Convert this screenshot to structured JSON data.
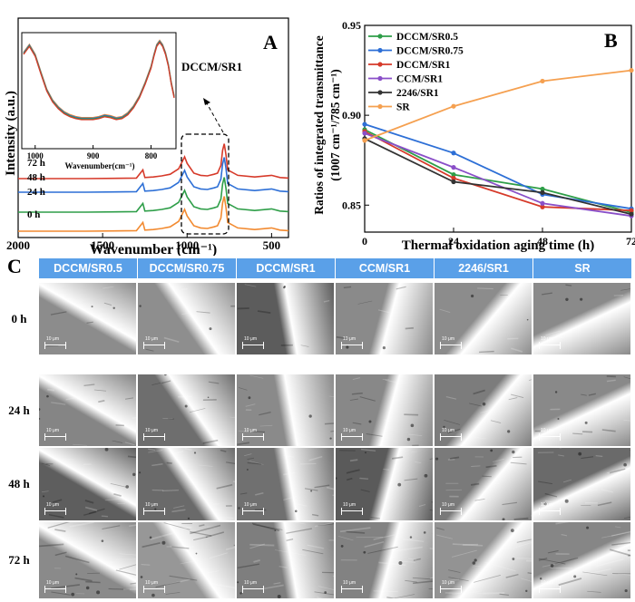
{
  "chart_data": [
    {
      "panel": "A",
      "type": "line",
      "title": "DCCM/SR1",
      "xlabel": "Wavenumber (cm⁻¹)",
      "ylabel": "Intensity (a.u.)",
      "xlim": [
        2000,
        400
      ],
      "xticks": [
        "2000",
        "1500",
        "1000",
        "500"
      ],
      "series": [
        {
          "name": "0 h",
          "color": "#f28a30",
          "x": [
            2000,
            1600,
            1300,
            1262,
            1250,
            1200,
            1150,
            1100,
            1050,
            1015,
            1000,
            960,
            920,
            880,
            840,
            820,
            800,
            790,
            780,
            770,
            760,
            700,
            600,
            500,
            450,
            400
          ],
          "y": [
            0,
            0,
            0.5,
            8,
            1,
            1.5,
            2.5,
            4,
            9,
            20,
            14,
            5,
            3,
            2.5,
            4,
            5,
            12,
            26,
            32,
            22,
            8,
            3,
            1.5,
            3,
            1,
            0.5
          ]
        },
        {
          "name": "24 h",
          "color": "#2e9e48",
          "x": [
            2000,
            1600,
            1300,
            1262,
            1250,
            1200,
            1150,
            1100,
            1050,
            1015,
            1000,
            960,
            920,
            880,
            840,
            820,
            800,
            790,
            780,
            770,
            760,
            700,
            600,
            500,
            450,
            400
          ],
          "y": [
            0,
            0,
            0.5,
            8,
            1,
            1.5,
            2.5,
            4,
            9,
            20,
            14,
            5,
            3,
            2.5,
            4,
            5,
            12,
            26,
            32,
            22,
            8,
            3,
            1.5,
            3,
            1,
            0.5
          ]
        },
        {
          "name": "48 h",
          "color": "#2d6fd6",
          "x": [
            2000,
            1600,
            1300,
            1262,
            1250,
            1200,
            1150,
            1100,
            1050,
            1015,
            1000,
            960,
            920,
            880,
            840,
            820,
            800,
            790,
            780,
            770,
            760,
            700,
            600,
            500,
            450,
            400
          ],
          "y": [
            0,
            0,
            0.5,
            8,
            1,
            1.5,
            2.5,
            4,
            9,
            20,
            14,
            5,
            3,
            2.5,
            4,
            5,
            12,
            26,
            32,
            22,
            8,
            3,
            1.5,
            3,
            1,
            0.5
          ]
        },
        {
          "name": "72 h",
          "color": "#d63a2a",
          "x": [
            2000,
            1600,
            1300,
            1262,
            1250,
            1200,
            1150,
            1100,
            1050,
            1015,
            1000,
            960,
            920,
            880,
            840,
            820,
            800,
            790,
            780,
            770,
            760,
            700,
            600,
            500,
            450,
            400
          ],
          "y": [
            0,
            0,
            0.5,
            8,
            1,
            1.5,
            2.5,
            4,
            9,
            20,
            14,
            5,
            3,
            2.5,
            4,
            5,
            12,
            26,
            32,
            22,
            8,
            3,
            1.5,
            3,
            1,
            0.5
          ]
        }
      ],
      "inset": {
        "xlabel": "Wavenumber(cm⁻¹)",
        "xlim": [
          1020,
          760
        ],
        "xticks": [
          "1000",
          "900",
          "800"
        ],
        "x": [
          1020,
          1010,
          1000,
          990,
          980,
          970,
          960,
          950,
          940,
          930,
          920,
          910,
          900,
          890,
          880,
          870,
          860,
          850,
          840,
          830,
          820,
          810,
          800,
          795,
          790,
          785,
          780,
          775,
          770,
          765,
          760
        ],
        "y": [
          92,
          100,
          90,
          72,
          55,
          44,
          37,
          32,
          29,
          27,
          26,
          26,
          26,
          27,
          29,
          28,
          26,
          27,
          31,
          38,
          48,
          62,
          78,
          90,
          100,
          104,
          100,
          92,
          80,
          62,
          48
        ]
      }
    },
    {
      "panel": "B",
      "type": "line",
      "xlabel": "Thermal oxidation aging time (h)",
      "ylabel": "Ratios of integrated transmittance",
      "ylabel2": "(1007 cm⁻¹/785 cm⁻¹)",
      "x": [
        0,
        24,
        48,
        72
      ],
      "xlim": [
        0,
        72
      ],
      "ylim": [
        0.835,
        0.95
      ],
      "xticks": [
        "0",
        "24",
        "48",
        "72"
      ],
      "yticks": [
        "0.85",
        "0.90",
        "0.95"
      ],
      "legend": "top-left",
      "series": [
        {
          "name": "DCCM/SR0.5",
          "color": "#2e9e48",
          "values": [
            0.892,
            0.867,
            0.859,
            0.846
          ]
        },
        {
          "name": "DCCM/SR0.75",
          "color": "#2d6fd6",
          "values": [
            0.895,
            0.879,
            0.856,
            0.848
          ]
        },
        {
          "name": "DCCM/SR1",
          "color": "#d63a2a",
          "values": [
            0.891,
            0.865,
            0.849,
            0.847
          ]
        },
        {
          "name": "CCM/SR1",
          "color": "#8a4fc8",
          "values": [
            0.89,
            0.871,
            0.851,
            0.844
          ]
        },
        {
          "name": "2246/SR1",
          "color": "#333333",
          "values": [
            0.887,
            0.863,
            0.857,
            0.845
          ]
        },
        {
          "name": "SR",
          "color": "#f5a050",
          "values": [
            0.886,
            0.905,
            0.919,
            0.925
          ]
        }
      ]
    }
  ],
  "panelA": {
    "label": "A",
    "annotation": "DCCM/SR1",
    "series_labels": [
      "72 h",
      "48 h",
      "24 h",
      "0 h"
    ]
  },
  "panelB": {
    "label": "B"
  },
  "panelC": {
    "label": "C",
    "columns": [
      "DCCM/SR0.5",
      "DCCM/SR0.75",
      "DCCM/SR1",
      "CCM/SR1",
      "2246/SR1",
      "SR"
    ],
    "rows": [
      "0 h",
      "24 h",
      "48 h",
      "72 h"
    ],
    "scale_bar": "10 μm"
  }
}
